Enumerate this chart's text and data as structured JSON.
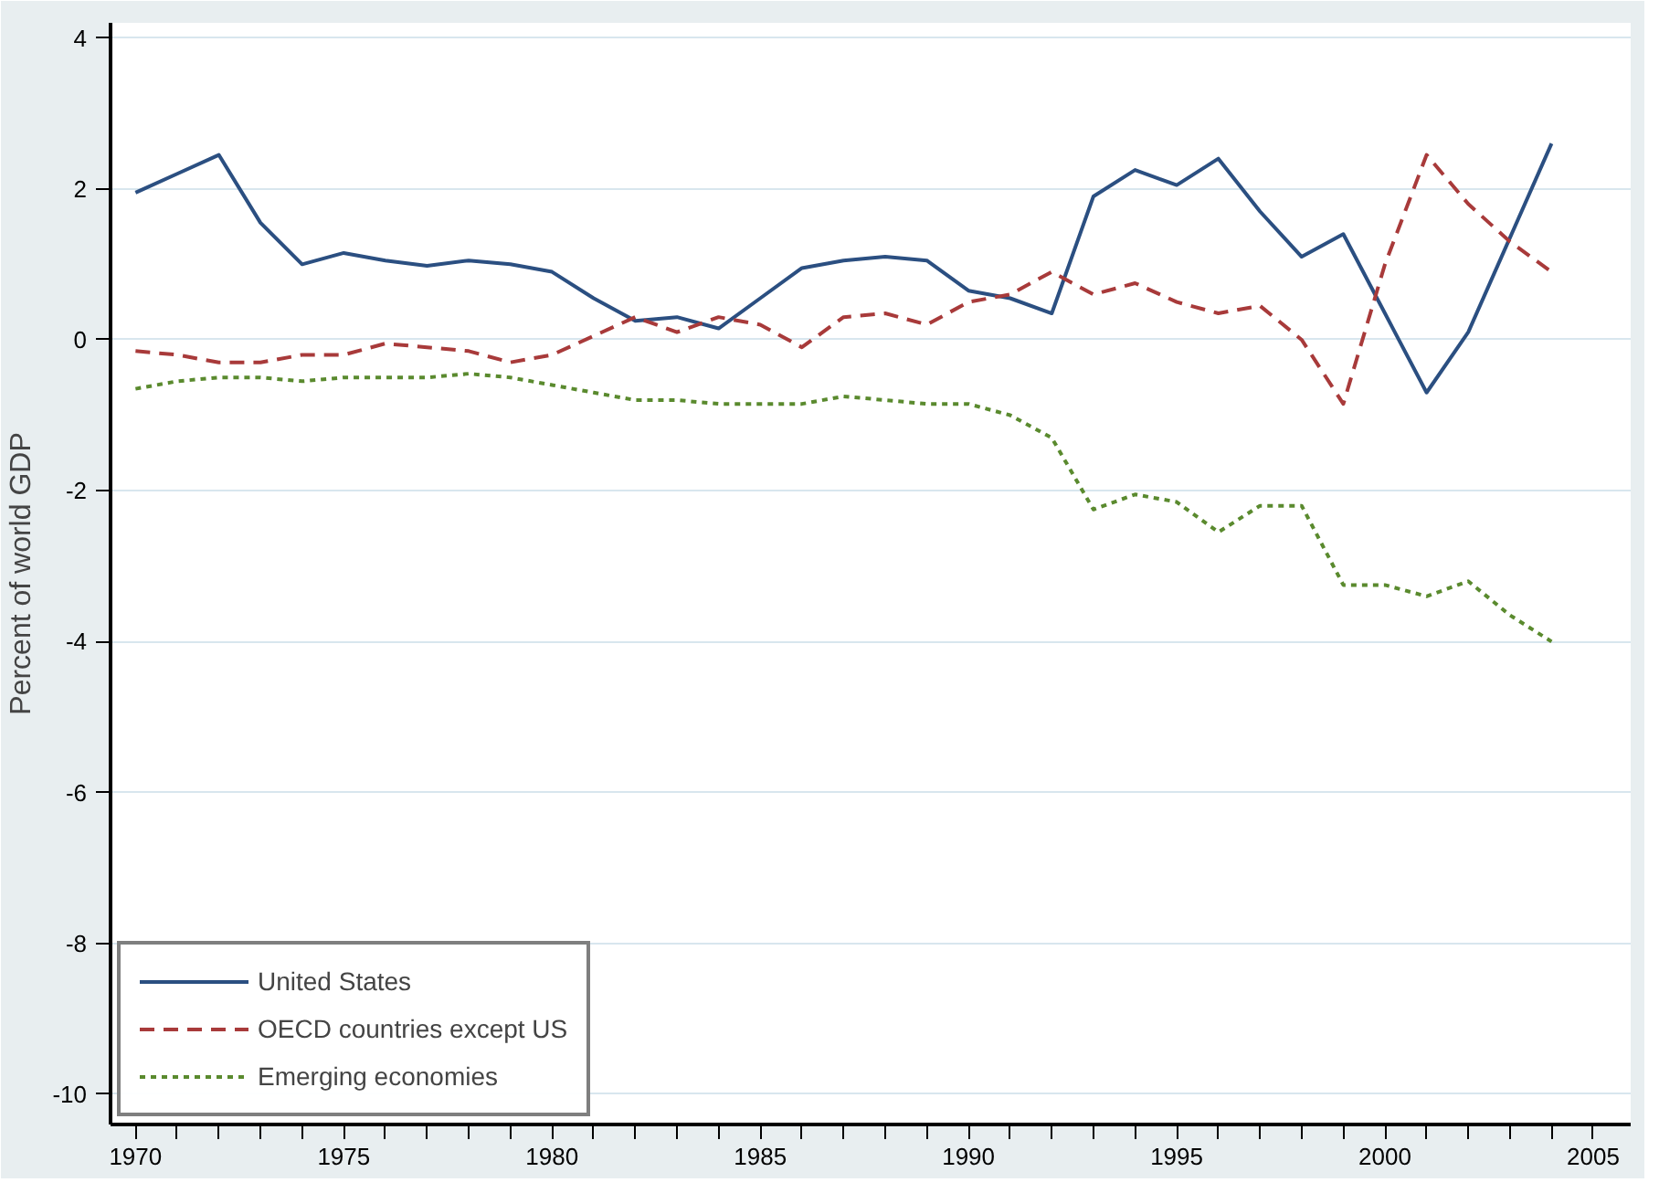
{
  "chart_data": {
    "type": "line",
    "ylabel": "Percent of world GDP",
    "x": [
      1970,
      1971,
      1972,
      1973,
      1974,
      1975,
      1976,
      1977,
      1978,
      1979,
      1980,
      1981,
      1982,
      1983,
      1984,
      1985,
      1986,
      1987,
      1988,
      1989,
      1990,
      1991,
      1992,
      1993,
      1994,
      1995,
      1996,
      1997,
      1998,
      1999,
      2000,
      2001,
      2002,
      2003,
      2004
    ],
    "series": [
      {
        "name": "United States",
        "color": "#2b4f81",
        "line_style": "solid",
        "values": [
          1.95,
          2.2,
          2.45,
          1.55,
          1.0,
          1.15,
          1.05,
          0.98,
          1.05,
          1.0,
          0.9,
          0.55,
          0.25,
          0.3,
          0.15,
          0.55,
          0.95,
          1.05,
          1.1,
          1.05,
          0.65,
          0.55,
          0.35,
          1.9,
          2.25,
          2.05,
          2.4,
          1.7,
          1.1,
          1.4,
          0.35,
          -0.7,
          0.1,
          1.35,
          2.6
        ]
      },
      {
        "name": "OECD countries except US",
        "color": "#a83a3a",
        "line_style": "dashed",
        "values": [
          -0.15,
          -0.2,
          -0.3,
          -0.3,
          -0.2,
          -0.2,
          -0.05,
          -0.1,
          -0.15,
          -0.3,
          -0.2,
          0.05,
          0.3,
          0.1,
          0.3,
          0.2,
          -0.1,
          0.3,
          0.35,
          0.2,
          0.5,
          0.6,
          0.9,
          0.6,
          0.75,
          0.5,
          0.35,
          0.45,
          0.0,
          -0.85,
          1.0,
          2.45,
          1.8,
          1.3,
          0.9
        ]
      },
      {
        "name": "Emerging economies",
        "color": "#5a8a2e",
        "line_style": "dotted",
        "values": [
          -0.65,
          -0.55,
          -0.5,
          -0.5,
          -0.55,
          -0.5,
          -0.5,
          -0.5,
          -0.45,
          -0.5,
          -0.6,
          -0.7,
          -0.8,
          -0.8,
          -0.85,
          -0.85,
          -0.85,
          -0.75,
          -0.8,
          -0.85,
          -0.85,
          -1.0,
          -1.3,
          -2.25,
          -2.05,
          -2.15,
          -2.55,
          -2.2,
          -2.2,
          -3.25,
          -3.25,
          -3.4,
          -3.2,
          -3.65,
          -4.0
        ]
      }
    ],
    "xlim": [
      1969.4,
      2005.9
    ],
    "ylim": [
      -10.4,
      4.2
    ],
    "xticks": [
      1970,
      {
        "value": 1971,
        "label": null
      },
      {
        "value": 1972,
        "label": null
      },
      {
        "value": 1973,
        "label": null
      },
      {
        "value": 1974,
        "label": null
      },
      1975,
      {
        "value": 1976,
        "label": null
      },
      {
        "value": 1977,
        "label": null
      },
      {
        "value": 1978,
        "label": null
      },
      {
        "value": 1979,
        "label": null
      },
      1980,
      {
        "value": 1981,
        "label": null
      },
      {
        "value": 1982,
        "label": null
      },
      {
        "value": 1983,
        "label": null
      },
      {
        "value": 1984,
        "label": null
      },
      1985,
      {
        "value": 1986,
        "label": null
      },
      {
        "value": 1987,
        "label": null
      },
      {
        "value": 1988,
        "label": null
      },
      {
        "value": 1989,
        "label": null
      },
      1990,
      {
        "value": 1991,
        "label": null
      },
      {
        "value": 1992,
        "label": null
      },
      {
        "value": 1993,
        "label": null
      },
      {
        "value": 1994,
        "label": null
      },
      1995,
      {
        "value": 1996,
        "label": null
      },
      {
        "value": 1997,
        "label": null
      },
      {
        "value": 1998,
        "label": null
      },
      {
        "value": 1999,
        "label": null
      },
      2000,
      {
        "value": 2001,
        "label": null
      },
      {
        "value": 2002,
        "label": null
      },
      {
        "value": 2003,
        "label": null
      },
      {
        "value": 2004,
        "label": null
      },
      2005
    ],
    "yticks": [
      -10,
      -8,
      -6,
      -4,
      -2,
      0,
      2,
      4
    ],
    "grid": "y",
    "legend": "bottom left"
  }
}
